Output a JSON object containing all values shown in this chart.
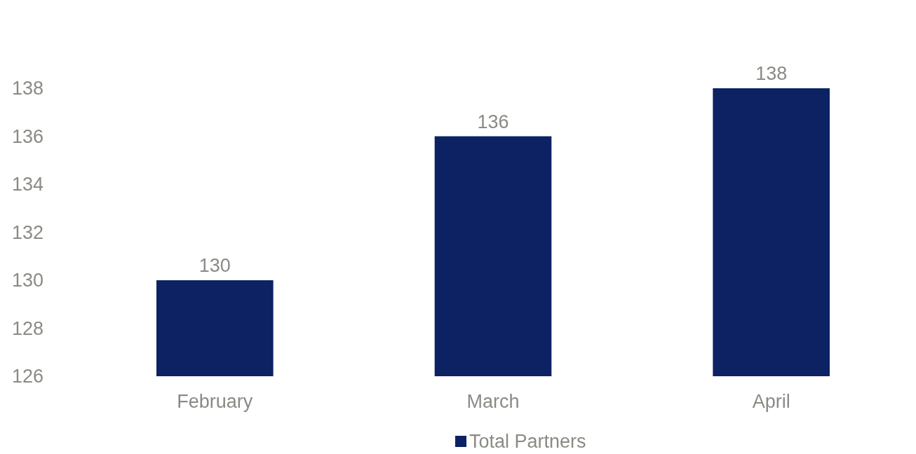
{
  "chart_data": {
    "type": "bar",
    "categories": [
      "February",
      "March",
      "April"
    ],
    "series": [
      {
        "name": "Total Partners",
        "color": "#0c2262",
        "values": [
          130,
          136,
          138
        ]
      }
    ],
    "ylim": [
      126,
      138
    ],
    "yticks": [
      126,
      128,
      130,
      132,
      134,
      136,
      138
    ],
    "data_labels": true,
    "legend": "bottom"
  }
}
